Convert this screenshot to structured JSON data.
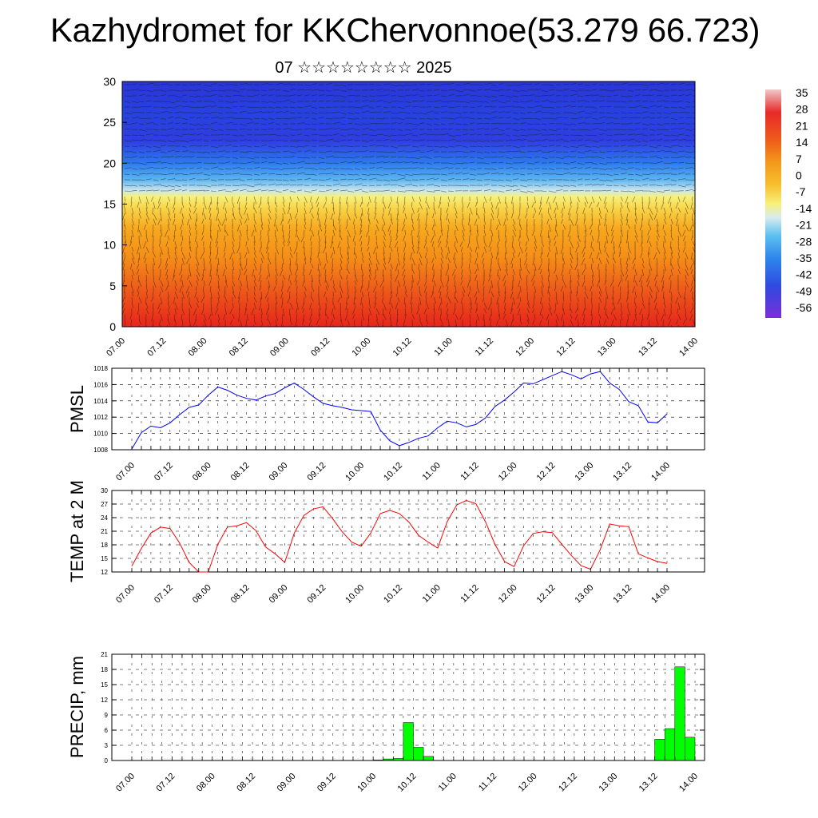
{
  "title": "Kazhydromet for KKChervonnoe(53.279 66.723)",
  "subtitle": "07 ☆☆☆☆☆☆☆☆ 2025",
  "time_ticks": [
    "07.00",
    "07.12",
    "08.00",
    "08.12",
    "09.00",
    "09.12",
    "10.00",
    "10.12",
    "11.00",
    "11.12",
    "12.00",
    "12.12",
    "13.00",
    "13.12",
    "14.00"
  ],
  "chart_data": [
    {
      "type": "heatmap",
      "xlabel": "",
      "ylabel": "",
      "ylim": [
        0,
        30
      ],
      "y_ticks": [
        0,
        5,
        10,
        15,
        20,
        25,
        30
      ],
      "x_ticks": [
        "07.00",
        "07.12",
        "08.00",
        "08.12",
        "09.00",
        "09.12",
        "10.00",
        "10.12",
        "11.00",
        "11.12",
        "12.00",
        "12.12",
        "13.00",
        "13.12",
        "14.00"
      ],
      "colorbar_labels": [
        "35",
        "28",
        "21",
        "14",
        "7",
        "0",
        "-7",
        "-14",
        "-21",
        "-28",
        "-35",
        "-42",
        "-49",
        "-56"
      ],
      "colorbar_values": [
        35,
        28,
        21,
        14,
        7,
        0,
        -7,
        -14,
        -21,
        -28,
        -35,
        -42,
        -49,
        -56
      ],
      "colors": {
        "warm": "#e8241b",
        "orange": "#f7a21c",
        "yellow": "#f8f07a",
        "light_blue": "#a6d8f0",
        "blue": "#1d63e8",
        "violet": "#6a2be0"
      },
      "overlay": "wind barbs"
    },
    {
      "type": "line",
      "ylabel": "PMSL",
      "ylim": [
        1008,
        1018
      ],
      "y_ticks": [
        1008,
        1010,
        1012,
        1014,
        1016,
        1018
      ],
      "x_ticks": [
        "07.00",
        "07.12",
        "08.00",
        "08.12",
        "09.00",
        "09.12",
        "10.00",
        "10.12",
        "11.00",
        "11.12",
        "12.00",
        "12.12",
        "13.00",
        "13.12",
        "14.00"
      ],
      "x": [
        0,
        3,
        6,
        9,
        12,
        15,
        18,
        21,
        24,
        27,
        30,
        33,
        36,
        39,
        42,
        45,
        48,
        51,
        54,
        57,
        60,
        63,
        66,
        69,
        72,
        75,
        78,
        81,
        84,
        87,
        90,
        93,
        96,
        99,
        102,
        105,
        108,
        111,
        114,
        117,
        120,
        123,
        126,
        129,
        132,
        135,
        138,
        141,
        144,
        147,
        150,
        153,
        156,
        159,
        162,
        165,
        168
      ],
      "series": [
        {
          "color": "#0000ff",
          "values": [
            1008.1,
            1010.1,
            1010.9,
            1010.7,
            1011.3,
            1012.3,
            1013.2,
            1013.5,
            1014.7,
            1015.7,
            1015.3,
            1014.7,
            1014.3,
            1014.1,
            1014.6,
            1014.9,
            1015.6,
            1016.2,
            1015.4,
            1014.5,
            1013.7,
            1013.4,
            1013.2,
            1012.9,
            1012.8,
            1012.7,
            1010.4,
            1009.1,
            1008.5,
            1008.9,
            1009.4,
            1009.7,
            1010.7,
            1011.5,
            1011.3,
            1010.8,
            1011.1,
            1011.9,
            1013.3,
            1014.1,
            1015.1,
            1016.2,
            1016.1,
            1016.6,
            1017.1,
            1017.6,
            1017.2,
            1016.7,
            1017.3,
            1017.6,
            1016.2,
            1015.4,
            1013.9,
            1013.4,
            1011.4,
            1011.3,
            1012.4
          ]
        }
      ]
    },
    {
      "type": "line",
      "ylabel": "TEMP at 2 M",
      "ylim": [
        12,
        30
      ],
      "y_ticks": [
        12,
        15,
        18,
        21,
        24,
        27,
        30
      ],
      "x_ticks": [
        "07.00",
        "07.12",
        "08.00",
        "08.12",
        "09.00",
        "09.12",
        "10.00",
        "10.12",
        "11.00",
        "11.12",
        "12.00",
        "12.12",
        "13.00",
        "13.12",
        "14.00"
      ],
      "x": [
        0,
        3,
        6,
        9,
        12,
        15,
        18,
        21,
        24,
        27,
        30,
        33,
        36,
        39,
        42,
        45,
        48,
        51,
        54,
        57,
        60,
        63,
        66,
        69,
        72,
        75,
        78,
        81,
        84,
        87,
        90,
        93,
        96,
        99,
        102,
        105,
        108,
        111,
        114,
        117,
        120,
        123,
        126,
        129,
        132,
        135,
        138,
        141,
        144,
        147,
        150,
        153,
        156,
        159,
        162,
        165,
        168
      ],
      "series": [
        {
          "color": "#ff0000",
          "values": [
            13.3,
            17.2,
            20.6,
            21.9,
            21.6,
            18.4,
            14.1,
            12.0,
            12.0,
            18.1,
            21.9,
            22.2,
            22.9,
            21.1,
            17.5,
            16.0,
            14.1,
            20.6,
            24.5,
            25.9,
            26.4,
            23.8,
            20.9,
            18.6,
            17.7,
            20.6,
            24.9,
            25.6,
            24.9,
            23.0,
            20.1,
            18.6,
            17.3,
            23.1,
            26.8,
            27.8,
            27.1,
            23.1,
            18.1,
            14.3,
            13.2,
            17.8,
            20.5,
            20.9,
            20.7,
            18.1,
            15.6,
            13.4,
            12.6,
            16.9,
            22.6,
            22.2,
            22.0,
            16.0,
            15.1,
            14.3,
            13.9
          ]
        }
      ]
    },
    {
      "type": "bar",
      "ylabel": "PRECIP, mm",
      "ylim": [
        0,
        21
      ],
      "y_ticks": [
        0,
        3,
        6,
        9,
        12,
        15,
        18,
        21
      ],
      "x_ticks": [
        "07.00",
        "07.12",
        "08.00",
        "08.12",
        "09.00",
        "09.12",
        "10.00",
        "10.12",
        "11.00",
        "11.12",
        "12.00",
        "12.12",
        "13.00",
        "13.12",
        "14.00"
      ],
      "bar_color": "#00ff00",
      "x": [
        72,
        75,
        78,
        81,
        84,
        87,
        156,
        159,
        162,
        165
      ],
      "values": [
        0.1,
        0.3,
        0.4,
        7.5,
        2.6,
        0.8,
        4.2,
        6.3,
        18.5,
        4.6
      ]
    }
  ]
}
